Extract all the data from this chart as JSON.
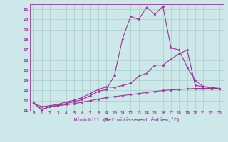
{
  "xlabel": "Windchill (Refroidissement éolien,°C)",
  "xlim": [
    -0.5,
    23.5
  ],
  "ylim": [
    11,
    21.5
  ],
  "xticks": [
    0,
    1,
    2,
    3,
    4,
    5,
    6,
    7,
    8,
    9,
    10,
    11,
    12,
    13,
    14,
    15,
    16,
    17,
    18,
    19,
    20,
    21,
    22,
    23
  ],
  "yticks": [
    11,
    12,
    13,
    14,
    15,
    16,
    17,
    18,
    19,
    20,
    21
  ],
  "bg_color": "#cce8e8",
  "line_color": "#993399",
  "grid_color": "#aacccc",
  "line1_x": [
    0,
    1,
    2,
    3,
    4,
    5,
    6,
    7,
    8,
    9,
    10,
    11,
    12,
    13,
    14,
    15,
    16,
    17,
    18,
    19,
    20,
    21,
    22,
    23
  ],
  "line1_y": [
    11.75,
    11.15,
    11.4,
    11.5,
    11.6,
    11.7,
    11.85,
    12.0,
    12.15,
    12.3,
    12.4,
    12.5,
    12.6,
    12.7,
    12.8,
    12.9,
    13.0,
    13.05,
    13.1,
    13.15,
    13.2,
    13.2,
    13.2,
    13.2
  ],
  "line2_x": [
    0,
    1,
    2,
    3,
    4,
    5,
    6,
    7,
    8,
    9,
    10,
    11,
    12,
    13,
    14,
    15,
    16,
    17,
    18,
    19,
    20,
    21,
    22,
    23
  ],
  "line2_y": [
    11.75,
    11.1,
    11.4,
    11.55,
    11.7,
    11.9,
    12.1,
    12.5,
    12.9,
    13.1,
    14.5,
    18.1,
    20.3,
    20.0,
    21.2,
    20.5,
    21.3,
    17.2,
    17.0,
    15.3,
    14.0,
    13.4,
    13.2,
    13.2
  ],
  "line3_x": [
    0,
    1,
    2,
    3,
    4,
    5,
    6,
    7,
    8,
    9,
    10,
    11,
    12,
    13,
    14,
    15,
    16,
    17,
    18,
    19,
    20,
    21,
    22,
    23
  ],
  "line3_y": [
    11.75,
    11.4,
    11.5,
    11.65,
    11.85,
    12.05,
    12.3,
    12.7,
    13.1,
    13.35,
    13.3,
    13.5,
    13.7,
    14.4,
    14.7,
    15.5,
    15.5,
    16.1,
    16.6,
    17.0,
    13.5,
    13.4,
    13.3,
    13.2
  ]
}
